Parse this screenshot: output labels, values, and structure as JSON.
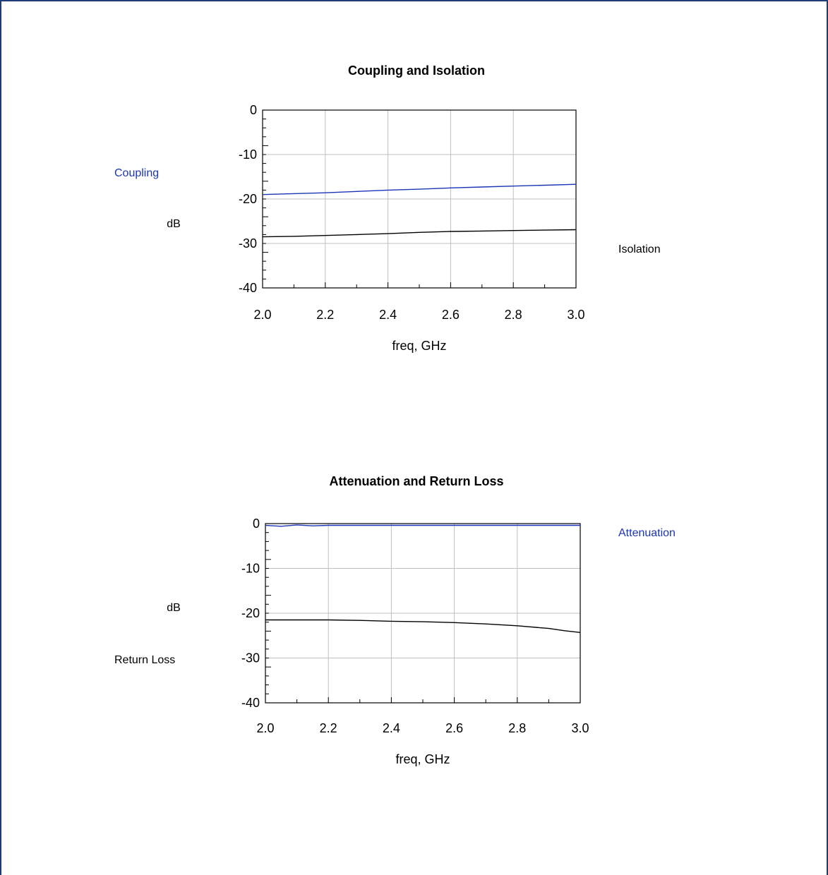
{
  "chart_data": [
    {
      "type": "line",
      "title": "Coupling and Isolation",
      "xlabel": "freq, GHz",
      "ylabel": "dB",
      "xlim": [
        2.0,
        3.0
      ],
      "ylim": [
        -40,
        0
      ],
      "xticks": [
        "2.0",
        "2.2",
        "2.4",
        "2.6",
        "2.8",
        "3.0"
      ],
      "yticks": [
        "0",
        "-10",
        "-20",
        "-30",
        "-40"
      ],
      "grid": true,
      "series": [
        {
          "name": "Coupling",
          "color": "#1a35b5",
          "x": [
            2.0,
            2.1,
            2.2,
            2.3,
            2.4,
            2.5,
            2.6,
            2.7,
            2.8,
            2.9,
            3.0
          ],
          "y": [
            -19.0,
            -18.8,
            -18.6,
            -18.3,
            -18.0,
            -17.8,
            -17.5,
            -17.3,
            -17.1,
            -16.9,
            -16.7
          ]
        },
        {
          "name": "Isolation",
          "color": "#000000",
          "x": [
            2.0,
            2.1,
            2.2,
            2.3,
            2.4,
            2.5,
            2.6,
            2.7,
            2.8,
            2.9,
            3.0
          ],
          "y": [
            -28.5,
            -28.4,
            -28.2,
            -28.0,
            -27.8,
            -27.5,
            -27.3,
            -27.2,
            -27.1,
            -27.0,
            -26.9
          ]
        }
      ]
    },
    {
      "type": "line",
      "title": "Attenuation and Return Loss",
      "xlabel": "freq, GHz",
      "ylabel": "dB",
      "xlim": [
        2.0,
        3.0
      ],
      "ylim": [
        -40,
        0
      ],
      "xticks": [
        "2.0",
        "2.2",
        "2.4",
        "2.6",
        "2.8",
        "3.0"
      ],
      "yticks": [
        "0",
        "-10",
        "-20",
        "-30",
        "-40"
      ],
      "grid": true,
      "series": [
        {
          "name": "Attenuation",
          "color": "#1a35b5",
          "x": [
            2.0,
            2.05,
            2.1,
            2.15,
            2.2,
            2.4,
            2.6,
            2.8,
            3.0
          ],
          "y": [
            -0.4,
            -0.6,
            -0.3,
            -0.5,
            -0.4,
            -0.4,
            -0.4,
            -0.4,
            -0.4
          ]
        },
        {
          "name": "Return Loss",
          "color": "#000000",
          "x": [
            2.0,
            2.1,
            2.2,
            2.3,
            2.4,
            2.5,
            2.6,
            2.7,
            2.8,
            2.9,
            2.95,
            3.0
          ],
          "y": [
            -21.5,
            -21.5,
            -21.5,
            -21.6,
            -21.8,
            -21.9,
            -22.1,
            -22.4,
            -22.8,
            -23.4,
            -23.9,
            -24.3
          ]
        }
      ]
    }
  ]
}
